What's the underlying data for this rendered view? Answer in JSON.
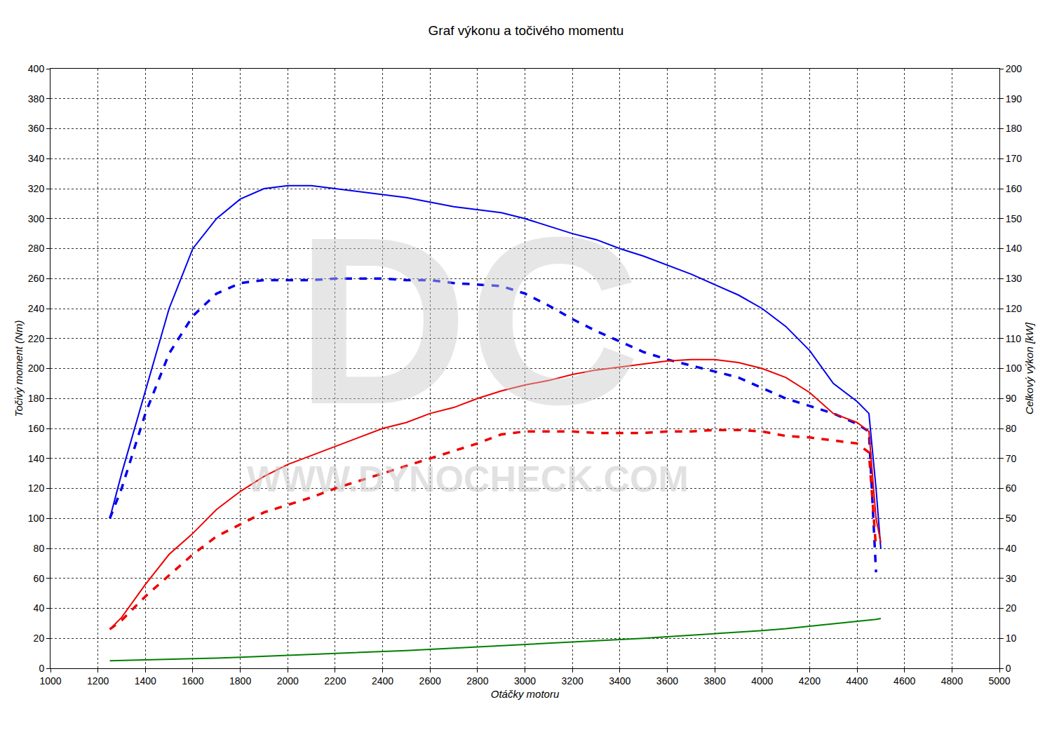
{
  "chart_data": {
    "type": "line",
    "title": "Graf výkonu a točivého momentu",
    "x_label": "Otáčky motoru",
    "y_label": "Točivý moment (Nm)",
    "y2_label": "Celkový výkon [kW]",
    "annotations": [
      "DC",
      "WWW.DYNOCHECK.COM"
    ],
    "grid": true,
    "x": [
      1250,
      1300,
      1400,
      1500,
      1600,
      1700,
      1800,
      1900,
      2000,
      2100,
      2200,
      2300,
      2400,
      2500,
      2600,
      2700,
      2800,
      2900,
      3000,
      3100,
      3200,
      3300,
      3400,
      3500,
      3600,
      3700,
      3800,
      3900,
      4000,
      4100,
      4200,
      4300,
      4400,
      4450,
      4480,
      4500
    ],
    "xlim": [
      1000,
      5000
    ],
    "xticks": [
      1000,
      1200,
      1400,
      1600,
      1800,
      2000,
      2200,
      2400,
      2600,
      2800,
      3000,
      3200,
      3400,
      3600,
      3800,
      4000,
      4200,
      4400,
      4600,
      4800,
      5000
    ],
    "ylim": [
      0,
      400
    ],
    "yticks": [
      0,
      20,
      40,
      60,
      80,
      100,
      120,
      140,
      160,
      180,
      200,
      220,
      240,
      260,
      280,
      300,
      320,
      340,
      360,
      380,
      400
    ],
    "y2lim": [
      0,
      200
    ],
    "y2ticks": [
      0,
      10,
      20,
      30,
      40,
      50,
      60,
      70,
      80,
      90,
      100,
      110,
      120,
      130,
      140,
      150,
      160,
      170,
      180,
      190,
      200
    ],
    "series": [
      {
        "color": "#0000ee",
        "line_style": "solid",
        "axis": "y",
        "values": [
          100,
          130,
          185,
          240,
          280,
          300,
          313,
          320,
          322,
          322,
          320,
          318,
          316,
          314,
          311,
          308,
          306,
          304,
          300,
          295,
          290,
          286,
          280,
          275,
          269,
          263,
          256,
          249,
          240,
          228,
          212,
          190,
          178,
          170,
          120,
          80
        ]
      },
      {
        "color": "#0000ee",
        "line_style": "dash",
        "axis": "y",
        "values": [
          100,
          120,
          170,
          210,
          235,
          250,
          257,
          259,
          259,
          259,
          260,
          260,
          260,
          259,
          259,
          257,
          256,
          255,
          250,
          242,
          233,
          225,
          218,
          211,
          206,
          202,
          198,
          194,
          187,
          180,
          175,
          170,
          163,
          158,
          64,
          null
        ]
      },
      {
        "color": "#ee0000",
        "line_style": "solid",
        "axis": "y2",
        "values": [
          13,
          17,
          28,
          38,
          45,
          53,
          59,
          64,
          68,
          71,
          74,
          77,
          80,
          82,
          85,
          87,
          90,
          92.5,
          94.5,
          96,
          98,
          99.5,
          100.5,
          101.5,
          102.5,
          103,
          103,
          102,
          100,
          97,
          92,
          85,
          82,
          79,
          50,
          42
        ]
      },
      {
        "color": "#ee0000",
        "line_style": "dash",
        "axis": "y2",
        "values": [
          13,
          16,
          24,
          31,
          38,
          44,
          48,
          52,
          54.5,
          57,
          60,
          62.5,
          65,
          67.5,
          70,
          72.5,
          75,
          78,
          79,
          79,
          79,
          78.5,
          78.5,
          78.5,
          79,
          79,
          79.5,
          79.5,
          79,
          77.5,
          77,
          76,
          75,
          72,
          40,
          null
        ]
      },
      {
        "color": "#008000",
        "line_style": "solid",
        "axis": "y2",
        "values": [
          2.5,
          2.6,
          2.8,
          2.9,
          3.1,
          3.4,
          3.7,
          4,
          4.4,
          4.7,
          5,
          5.3,
          5.6,
          5.9,
          6.3,
          6.7,
          7.1,
          7.5,
          7.9,
          8.3,
          8.7,
          9.1,
          9.5,
          10,
          10.5,
          11,
          11.5,
          12,
          12.6,
          13.2,
          14,
          14.8,
          15.6,
          16,
          16.3,
          16.6
        ]
      }
    ]
  }
}
